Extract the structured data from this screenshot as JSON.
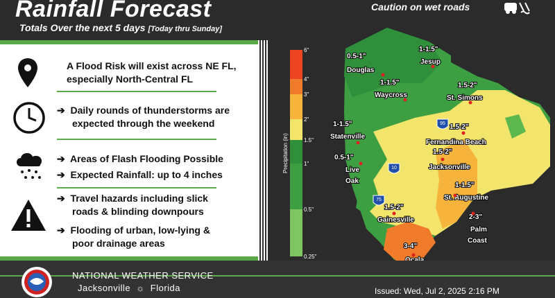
{
  "header": {
    "title": "Rainfall Forecast",
    "subtitle": "Totals Over the next 5 days",
    "subtitle_note": "[Today thru Sunday]",
    "caution": "Caution on wet roads"
  },
  "items": [
    {
      "icon": "map-pin-icon",
      "lines": [
        "A Flood Risk will exist across NE FL,",
        "especially North-Central FL"
      ]
    },
    {
      "icon": "clock-icon",
      "lines": [
        "Daily rounds of thunderstorms are",
        "expected through the weekend"
      ]
    },
    {
      "icon": "rain-cloud-icon",
      "bullets": [
        "Areas of Flash Flooding Possible",
        "Expected Rainfall: up to 4 inches"
      ]
    },
    {
      "icon": "warning-icon",
      "bullets": [
        "Travel hazards including slick",
        "roads & blinding downpours",
        "Flooding of urban, low-lying &",
        "poor drainage areas"
      ]
    }
  ],
  "footer": {
    "org": "NATIONAL WEATHER SERVICE",
    "city": "Jacksonville",
    "state": "Florida",
    "issued": "Issued: Wed, Jul 2, 2025 2:16 PM"
  },
  "legend": {
    "title": "Precipitation (in)",
    "ticks": [
      "6\"",
      "4\"",
      "3\"",
      "2\"",
      "1.5\"",
      "1\"",
      "0.5\"",
      "0.25\""
    ],
    "colors": [
      "#ee4422",
      "#f07b2a",
      "#f6b43c",
      "#f3e46b",
      "#2f8f3a",
      "#3d9f42",
      "#5cb84e",
      "#7fc663"
    ]
  },
  "map_labels": {
    "douglas": "Douglas",
    "douglas_amt": "0.5-1\"",
    "jesup": "Jesup",
    "jesup_amt": "1-1.5\"",
    "waycross": "Waycross",
    "waycross_amt": "1-1.5\"",
    "stsimons": "St. Simons",
    "stsimons_amt": "1.5-2\"",
    "statenville": "Statenville",
    "statenville_amt": "1-1.5\"",
    "fernandina": "Fernandina Beach",
    "fernandina_amt": "1.5-2\"",
    "jacksonville": "Jacksonville",
    "jacksonville_amt": "1.5-2\"",
    "liveoak": "Live",
    "liveoak2": "Oak",
    "liveoak_amt": "0.5-1\"",
    "staugustine": "St. Augustine",
    "staugustine_amt": "1-1.5\"",
    "gainesville": "Gainesville",
    "gainesville_amt": "1.5-2\"",
    "palmcoast": "Palm",
    "palmcoast2": "Coast",
    "palmcoast_amt": "2-3\"",
    "ocala": "Ocala",
    "ocala_amt": "3-4\"",
    "i95": "95",
    "i10": "10",
    "i75": "75"
  }
}
